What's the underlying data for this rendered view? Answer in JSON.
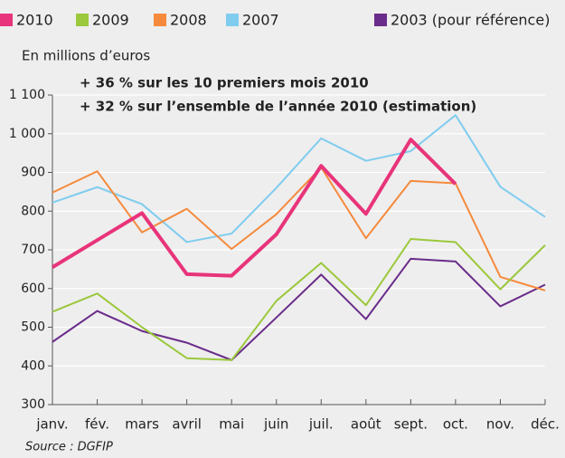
{
  "chart_data": {
    "type": "line",
    "unit_label": "En millions d’euros",
    "annotations": [
      "+ 36 % sur les 10 premiers mois 2010",
      "+ 32 % sur l’ensemble de l’année 2010 (estimation)"
    ],
    "source": "Source : DGFIP",
    "categories": [
      "janv.",
      "fév.",
      "mars",
      "avril",
      "mai",
      "juin",
      "juil.",
      "août",
      "sept.",
      "oct.",
      "nov.",
      "déc."
    ],
    "series": [
      {
        "name": "2010",
        "color": "#e8347a",
        "values": [
          655,
          725,
          795,
          637,
          633,
          740,
          917,
          793,
          985,
          870,
          null,
          null
        ]
      },
      {
        "name": "2009",
        "color": "#9bc83c",
        "values": [
          540,
          587,
          500,
          420,
          415,
          568,
          666,
          557,
          728,
          720,
          598,
          712
        ]
      },
      {
        "name": "2008",
        "color": "#f58a3c",
        "values": [
          848,
          903,
          745,
          806,
          702,
          792,
          913,
          730,
          878,
          872,
          630,
          595
        ]
      },
      {
        "name": "2007",
        "color": "#7fccef",
        "values": [
          822,
          862,
          818,
          720,
          742,
          860,
          988,
          930,
          955,
          1048,
          863,
          785
        ]
      },
      {
        "name": "2003 (pour référence)",
        "color": "#6a2c8a",
        "values": [
          462,
          542,
          490,
          460,
          415,
          525,
          636,
          521,
          677,
          670,
          554,
          610
        ]
      }
    ],
    "ylim": [
      300,
      1100
    ],
    "yticks": [
      300,
      400,
      500,
      600,
      700,
      800,
      900,
      {
        "value": 1000,
        "label": "1 000"
      },
      {
        "value": 1100,
        "label": "1 100"
      }
    ],
    "grid": true
  }
}
